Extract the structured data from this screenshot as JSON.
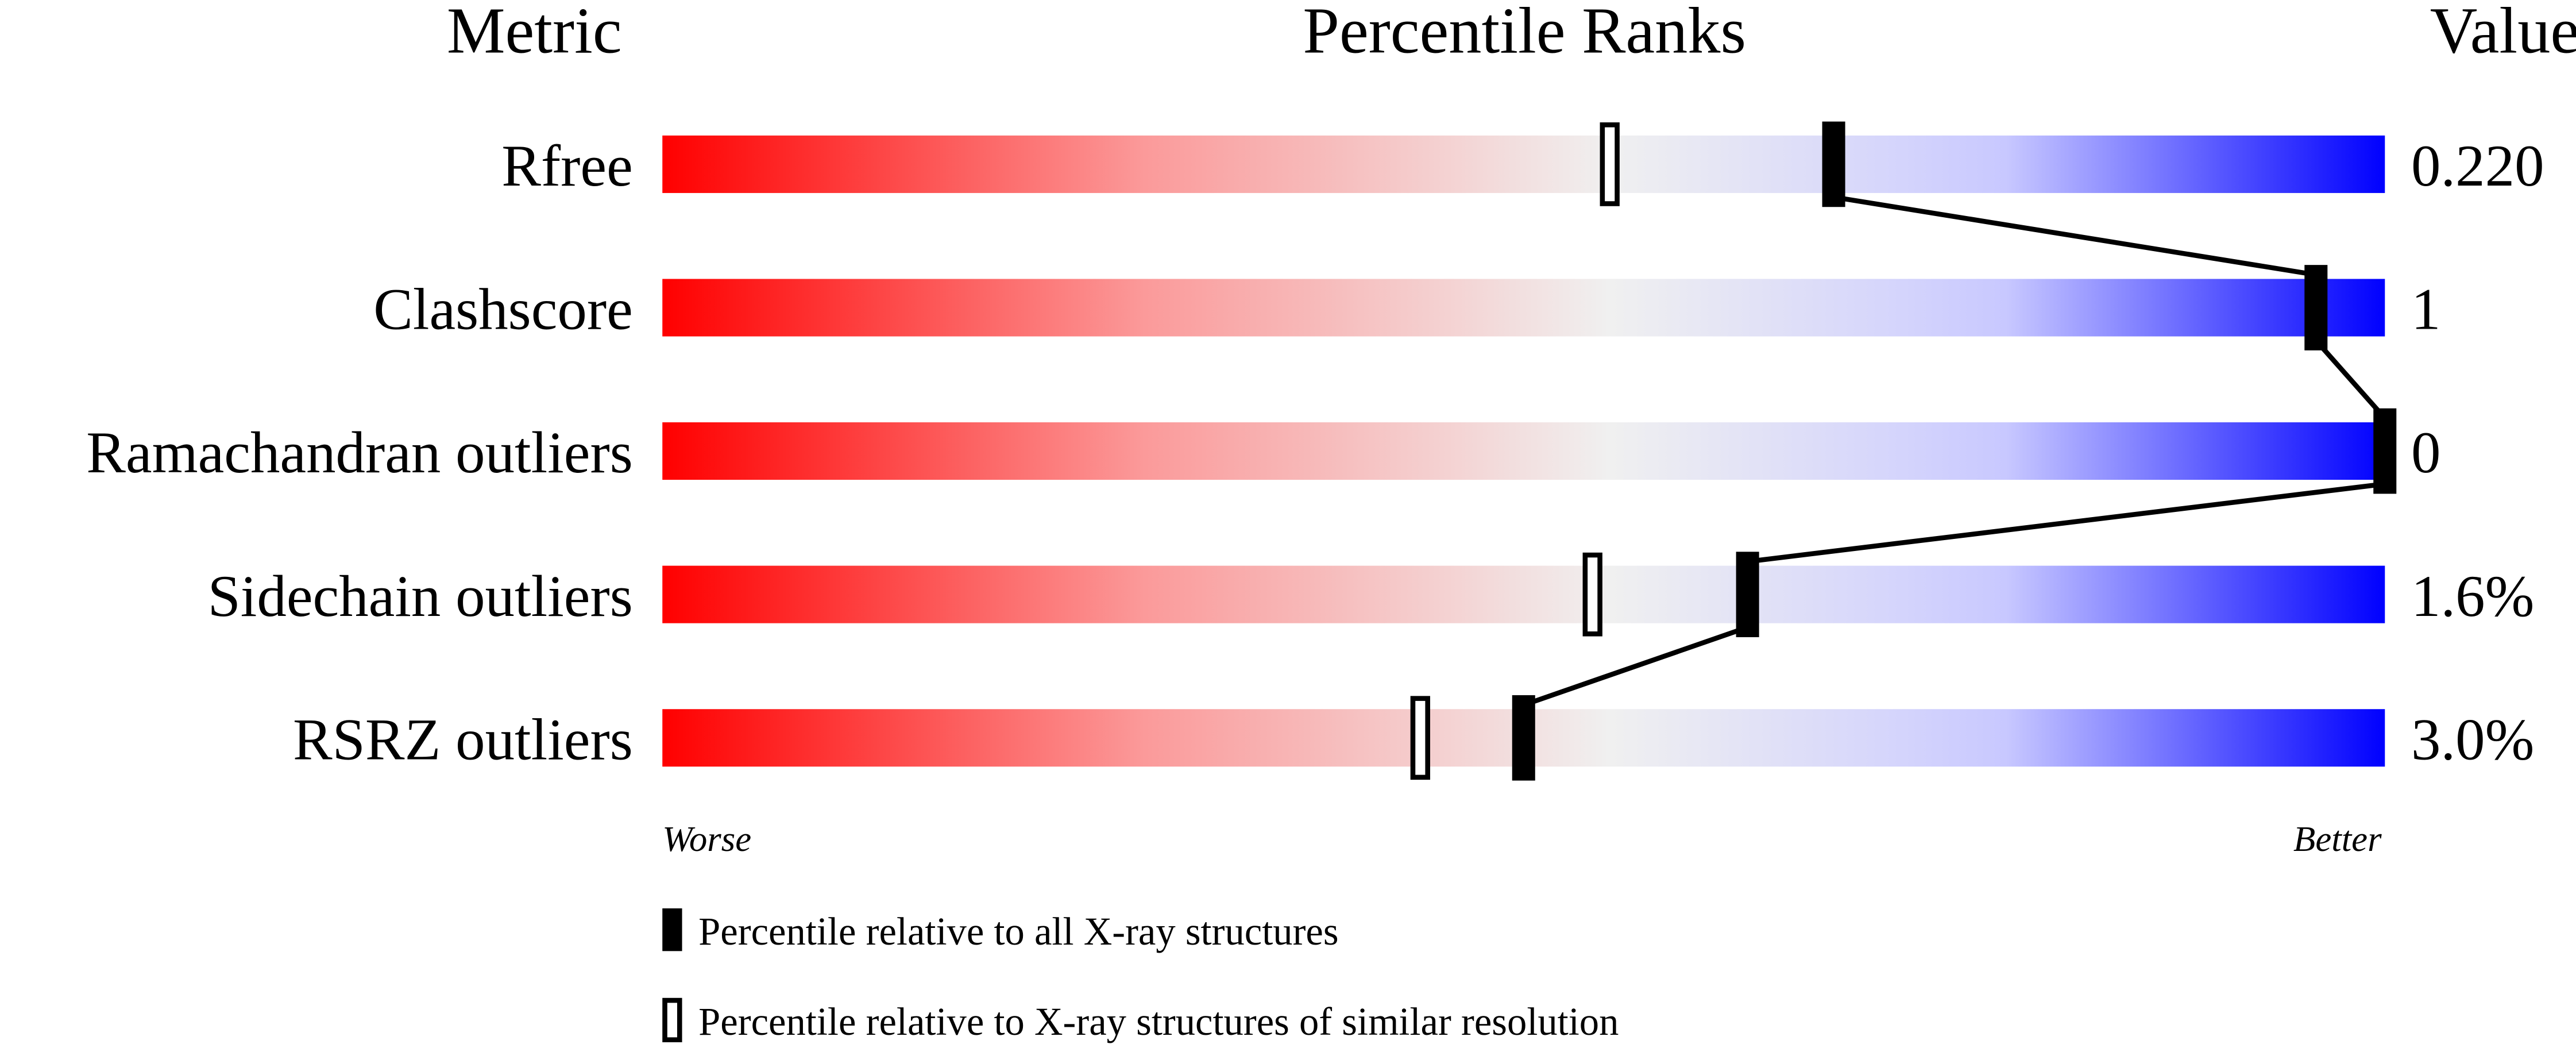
{
  "chart_data": {
    "type": "percentile-slider",
    "headers": {
      "metric": "Metric",
      "ranks": "Percentile Ranks",
      "value": "Value"
    },
    "xlim": [
      0,
      100
    ],
    "rows": [
      {
        "metric": "Rfree",
        "value": "0.220",
        "percentile_all": 68,
        "percentile_similar": 55
      },
      {
        "metric": "Clashscore",
        "value": "1",
        "percentile_all": 96,
        "percentile_similar": null
      },
      {
        "metric": "Ramachandran outliers",
        "value": "0",
        "percentile_all": 100,
        "percentile_similar": null
      },
      {
        "metric": "Sidechain outliers",
        "value": "1.6%",
        "percentile_all": 63,
        "percentile_similar": 54
      },
      {
        "metric": "RSRZ outliers",
        "value": "3.0%",
        "percentile_all": 50,
        "percentile_similar": 44
      }
    ],
    "axis_labels": {
      "left": "Worse",
      "right": "Better"
    },
    "legend": [
      {
        "marker": "filled",
        "label": "Percentile relative to all X-ray structures"
      },
      {
        "marker": "open",
        "label": "Percentile relative to X-ray structures of similar resolution"
      }
    ],
    "colors": {
      "worse": "#ff0000",
      "middle": "#f0f0f0",
      "better_light": "#d0d0ff",
      "better": "#0000ff",
      "marker": "#000000"
    }
  }
}
